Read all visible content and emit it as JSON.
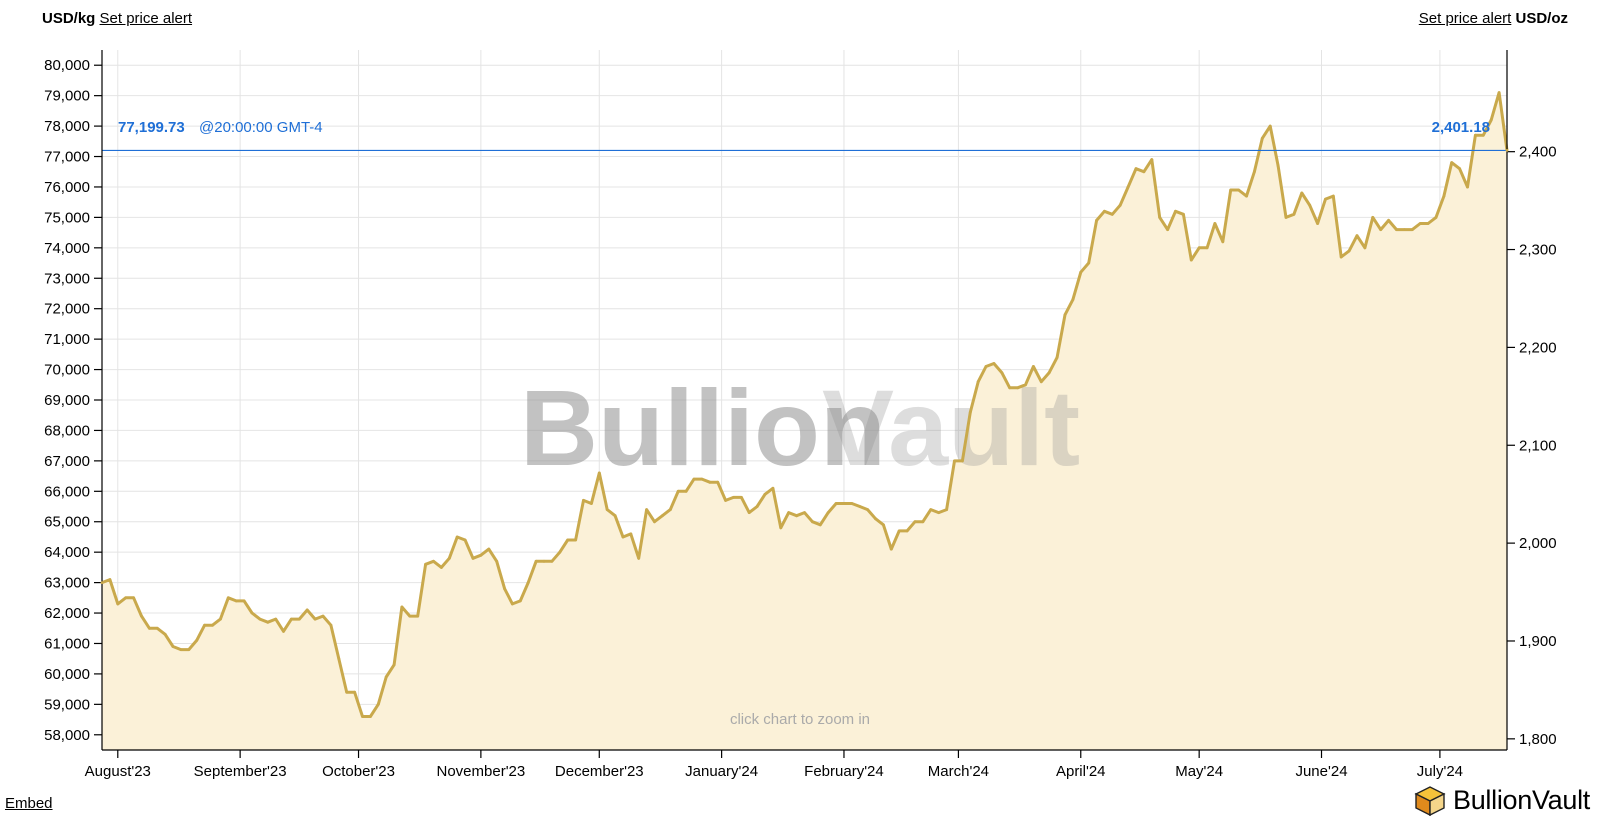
{
  "header": {
    "left_unit": "USD/kg",
    "left_alert": "Set price alert",
    "right_alert": "Set price alert",
    "right_unit": "USD/oz"
  },
  "current": {
    "value_kg": "77,199.73",
    "time": "@20:00:00 GMT-4",
    "value_oz": "2,401.18"
  },
  "watermark": "BullionVault",
  "zoom_hint": "click chart to zoom in",
  "footer": {
    "embed": "Embed",
    "logo_text": "BullionVault"
  },
  "colors": {
    "line": "#c9a94c",
    "fill": "#fbf1d8",
    "current": "#1f6fd6",
    "grid": "#e4e4e4"
  },
  "chart_data": {
    "type": "area",
    "title": "",
    "xlabel": "",
    "ylabel": "USD/kg",
    "y2label": "USD/oz",
    "ylim": [
      57500,
      80500
    ],
    "y2lim": [
      1788.6,
      2503.9
    ],
    "yticks": [
      58000,
      59000,
      60000,
      61000,
      62000,
      63000,
      64000,
      65000,
      66000,
      67000,
      68000,
      69000,
      70000,
      71000,
      72000,
      73000,
      74000,
      75000,
      76000,
      77000,
      78000,
      79000,
      80000
    ],
    "ytick_labels": [
      "58,000",
      "59,000",
      "60,000",
      "61,000",
      "62,000",
      "63,000",
      "64,000",
      "65,000",
      "66,000",
      "67,000",
      "68,000",
      "69,000",
      "70,000",
      "71,000",
      "72,000",
      "73,000",
      "74,000",
      "75,000",
      "76,000",
      "77,000",
      "78,000",
      "79,000",
      "80,000"
    ],
    "y2ticks": [
      1800,
      1900,
      2000,
      2100,
      2200,
      2300,
      2400
    ],
    "y2tick_labels": [
      "1,800",
      "1,900",
      "2,000",
      "2,100",
      "2,200",
      "2,300",
      "2,400"
    ],
    "xlim": [
      "2023-07-28",
      "2024-07-18"
    ],
    "x_ticks": [
      {
        "date": "2023-08-01",
        "label": "August'23"
      },
      {
        "date": "2023-09-01",
        "label": "September'23"
      },
      {
        "date": "2023-10-01",
        "label": "October'23"
      },
      {
        "date": "2023-11-01",
        "label": "November'23"
      },
      {
        "date": "2023-12-01",
        "label": "December'23"
      },
      {
        "date": "2024-01-01",
        "label": "January'24"
      },
      {
        "date": "2024-02-01",
        "label": "February'24"
      },
      {
        "date": "2024-03-01",
        "label": "March'24"
      },
      {
        "date": "2024-04-01",
        "label": "April'24"
      },
      {
        "date": "2024-05-01",
        "label": "May'24"
      },
      {
        "date": "2024-06-01",
        "label": "June'24"
      },
      {
        "date": "2024-07-01",
        "label": "July'24"
      }
    ],
    "current_value": 77199.73,
    "grid": true,
    "series": [
      {
        "x": [
          "2023-07-28",
          "2023-07-30",
          "2023-08-01",
          "2023-08-03",
          "2023-08-05",
          "2023-08-07",
          "2023-08-09",
          "2023-08-11",
          "2023-08-13",
          "2023-08-15",
          "2023-08-17",
          "2023-08-19",
          "2023-08-21",
          "2023-08-23",
          "2023-08-25",
          "2023-08-27",
          "2023-08-29",
          "2023-08-31",
          "2023-09-02",
          "2023-09-04",
          "2023-09-06",
          "2023-09-08",
          "2023-09-10",
          "2023-09-12",
          "2023-09-14",
          "2023-09-16",
          "2023-09-18",
          "2023-09-20",
          "2023-09-22",
          "2023-09-24",
          "2023-09-26",
          "2023-09-28",
          "2023-09-30",
          "2023-10-02",
          "2023-10-04",
          "2023-10-06",
          "2023-10-08",
          "2023-10-10",
          "2023-10-12",
          "2023-10-14",
          "2023-10-16",
          "2023-10-18",
          "2023-10-20",
          "2023-10-22",
          "2023-10-24",
          "2023-10-26",
          "2023-10-28",
          "2023-10-30",
          "2023-11-01",
          "2023-11-03",
          "2023-11-05",
          "2023-11-07",
          "2023-11-09",
          "2023-11-11",
          "2023-11-13",
          "2023-11-15",
          "2023-11-17",
          "2023-11-19",
          "2023-11-21",
          "2023-11-23",
          "2023-11-25",
          "2023-11-27",
          "2023-11-29",
          "2023-12-01",
          "2023-12-03",
          "2023-12-05",
          "2023-12-07",
          "2023-12-09",
          "2023-12-11",
          "2023-12-13",
          "2023-12-15",
          "2023-12-17",
          "2023-12-19",
          "2023-12-21",
          "2023-12-23",
          "2023-12-25",
          "2023-12-27",
          "2023-12-29",
          "2023-12-31",
          "2024-01-02",
          "2024-01-04",
          "2024-01-06",
          "2024-01-08",
          "2024-01-10",
          "2024-01-12",
          "2024-01-14",
          "2024-01-16",
          "2024-01-18",
          "2024-01-20",
          "2024-01-22",
          "2024-01-24",
          "2024-01-26",
          "2024-01-28",
          "2024-01-30",
          "2024-02-01",
          "2024-02-03",
          "2024-02-05",
          "2024-02-07",
          "2024-02-09",
          "2024-02-11",
          "2024-02-13",
          "2024-02-15",
          "2024-02-17",
          "2024-02-19",
          "2024-02-21",
          "2024-02-23",
          "2024-02-25",
          "2024-02-27",
          "2024-02-29",
          "2024-03-02",
          "2024-03-04",
          "2024-03-06",
          "2024-03-08",
          "2024-03-10",
          "2024-03-12",
          "2024-03-14",
          "2024-03-16",
          "2024-03-18",
          "2024-03-20",
          "2024-03-22",
          "2024-03-24",
          "2024-03-26",
          "2024-03-28",
          "2024-03-30",
          "2024-04-01",
          "2024-04-03",
          "2024-04-05",
          "2024-04-07",
          "2024-04-09",
          "2024-04-11",
          "2024-04-13",
          "2024-04-15",
          "2024-04-17",
          "2024-04-19",
          "2024-04-21",
          "2024-04-23",
          "2024-04-25",
          "2024-04-27",
          "2024-04-29",
          "2024-05-01",
          "2024-05-03",
          "2024-05-05",
          "2024-05-07",
          "2024-05-09",
          "2024-05-11",
          "2024-05-13",
          "2024-05-15",
          "2024-05-17",
          "2024-05-19",
          "2024-05-21",
          "2024-05-23",
          "2024-05-25",
          "2024-05-27",
          "2024-05-29",
          "2024-05-31",
          "2024-06-02",
          "2024-06-04",
          "2024-06-06",
          "2024-06-08",
          "2024-06-10",
          "2024-06-12",
          "2024-06-14",
          "2024-06-16",
          "2024-06-18",
          "2024-06-20",
          "2024-06-22",
          "2024-06-24",
          "2024-06-26",
          "2024-06-28",
          "2024-06-30",
          "2024-07-02",
          "2024-07-04",
          "2024-07-06",
          "2024-07-08",
          "2024-07-10",
          "2024-07-12",
          "2024-07-14",
          "2024-07-16",
          "2024-07-18"
        ],
        "values": [
          63000,
          63100,
          62300,
          62500,
          62500,
          61900,
          61500,
          61500,
          61300,
          60900,
          60800,
          60800,
          61100,
          61600,
          61600,
          61800,
          62500,
          62400,
          62400,
          62000,
          61800,
          61700,
          61800,
          61400,
          61800,
          61800,
          62100,
          61800,
          61900,
          61600,
          60500,
          59400,
          59400,
          58600,
          58600,
          59000,
          59900,
          60300,
          62200,
          61900,
          61900,
          63600,
          63700,
          63500,
          63800,
          64500,
          64400,
          63800,
          63900,
          64100,
          63700,
          62800,
          62300,
          62400,
          63000,
          63700,
          63700,
          63700,
          64000,
          64400,
          64400,
          65700,
          65600,
          66600,
          65400,
          65200,
          64500,
          64600,
          63800,
          65400,
          65000,
          65200,
          65400,
          66000,
          66000,
          66400,
          66400,
          66300,
          66300,
          65700,
          65800,
          65800,
          65300,
          65500,
          65900,
          66100,
          64800,
          65300,
          65200,
          65300,
          65000,
          64900,
          65300,
          65600,
          65600,
          65600,
          65500,
          65400,
          65100,
          64900,
          64100,
          64700,
          64700,
          65000,
          65000,
          65400,
          65300,
          65400,
          67000,
          67000,
          68600,
          69600,
          70100,
          70200,
          69900,
          69400,
          69400,
          69500,
          70100,
          69600,
          69900,
          70400,
          71800,
          72300,
          73200,
          73500,
          74900,
          75200,
          75100,
          75400,
          76000,
          76600,
          76500,
          76900,
          75000,
          74600,
          75200,
          75100,
          73600,
          74000,
          74000,
          74800,
          74200,
          75900,
          75900,
          75700,
          76500,
          77600,
          78000,
          76700,
          75000,
          75100,
          75800,
          75400,
          74800,
          75600,
          75700,
          73700,
          73900,
          74400,
          74000,
          75000,
          74600,
          74900,
          74600,
          74600,
          74600,
          74800,
          74800,
          75000,
          75700,
          76800,
          76600,
          76000,
          77700,
          77700,
          78200,
          79100,
          77200
        ]
      }
    ]
  }
}
